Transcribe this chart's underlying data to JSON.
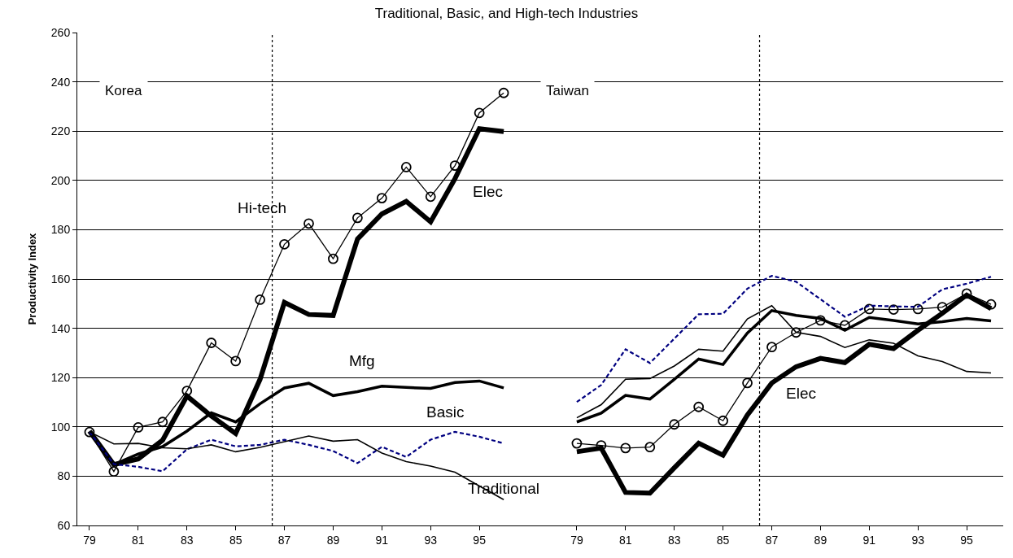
{
  "chart_data": [
    {
      "type": "line",
      "title": "Traditional, Basic, and High-tech Industries",
      "ylabel": "Productivity Index",
      "x": [
        79,
        80,
        81,
        82,
        83,
        84,
        85,
        86,
        87,
        88,
        89,
        90,
        91,
        92,
        93,
        94,
        95,
        96
      ],
      "xlim": [
        78.5,
        96.5
      ],
      "ylim": [
        60,
        260
      ],
      "xticks": [
        79,
        81,
        83,
        85,
        87,
        89,
        91,
        93,
        95
      ],
      "yticks": [
        60,
        80,
        100,
        120,
        140,
        160,
        180,
        200,
        220,
        240,
        260
      ],
      "grid": "y",
      "series": [
        {
          "name": "Mfg",
          "color": "#000000",
          "marker": "none",
          "line_style": "solid",
          "values": [
            97.9,
            84.7,
            89,
            92,
            98.3,
            105.7,
            102,
            109.4,
            115.8,
            117.7,
            112.7,
            114.3,
            116.5,
            116,
            115.6,
            118,
            118.6,
            115.8
          ]
        },
        {
          "name": "Elec",
          "color": "#000000",
          "marker": "none",
          "line_style": "solid",
          "values": [
            98.3,
            84.7,
            87,
            94.6,
            112.5,
            104.4,
            97.3,
            119.3,
            150.5,
            145.6,
            145.2,
            176.2,
            186.4,
            191.5,
            183.2,
            200.7,
            221,
            219.8
          ]
        },
        {
          "name": "Hi-tech",
          "color": "#000000",
          "marker": "circle",
          "line_style": "solid",
          "values": [
            97.9,
            81.9,
            99.8,
            102,
            114.6,
            134.1,
            126.7,
            151.6,
            174.1,
            182.5,
            168.2,
            184.8,
            192.8,
            205.4,
            193.4,
            206,
            227.4,
            235.5
          ]
        },
        {
          "name": "Basic",
          "color": "#000080",
          "marker": "none",
          "line_style": "dashed",
          "values": [
            98,
            84.9,
            83.8,
            82,
            90.9,
            94.8,
            92.1,
            92.7,
            94.8,
            92.7,
            90.2,
            85.3,
            91.9,
            87.8,
            94.8,
            98,
            96,
            93.3
          ]
        },
        {
          "name": "Traditional",
          "color": "#000000",
          "marker": "none",
          "line_style": "solid",
          "values": [
            98,
            93.1,
            93.3,
            91.5,
            91.1,
            92.7,
            89.9,
            91.7,
            94,
            96.3,
            94.2,
            94.8,
            89.4,
            85.9,
            84.1,
            81.6,
            76,
            70.5
          ]
        }
      ],
      "ref_lines": [
        {
          "axis": "x",
          "value": 86.5,
          "line_style": "dotted"
        }
      ],
      "annotations": [
        "Korea"
      ]
    },
    {
      "type": "line",
      "tick_labels": "x",
      "x": [
        79,
        80,
        81,
        82,
        83,
        84,
        85,
        86,
        87,
        88,
        89,
        90,
        91,
        92,
        93,
        94,
        95,
        96
      ],
      "xlim": [
        76.5,
        96.5
      ],
      "ylim": [
        60,
        260
      ],
      "xticks": [
        79,
        81,
        83,
        85,
        87,
        89,
        91,
        93,
        95
      ],
      "yticks": [
        60,
        80,
        100,
        120,
        140,
        160,
        180,
        200,
        220,
        240,
        260
      ],
      "grid": "y",
      "series": [
        {
          "color": "#000000",
          "marker": "none",
          "line_style": "solid",
          "values": [
            102,
            105.6,
            112.8,
            111.3,
            119.3,
            127.5,
            125.3,
            138.1,
            147.2,
            145.2,
            144,
            139.2,
            144.4,
            143.2,
            141.8,
            142.7,
            144,
            143
          ]
        },
        {
          "name": "Elec",
          "color": "#000000",
          "marker": "none",
          "line_style": "solid",
          "values": [
            89.9,
            91.4,
            73.4,
            73.1,
            83.4,
            93.4,
            88.5,
            104.8,
            117.8,
            124.4,
            127.8,
            126.1,
            133.5,
            131.8,
            139.2,
            146.1,
            153.5,
            148
          ]
        },
        {
          "color": "#000000",
          "marker": "circle",
          "line_style": "solid",
          "values": [
            93.3,
            92.5,
            91.4,
            91.8,
            101,
            108.1,
            102.5,
            117.8,
            132.4,
            138.3,
            143.2,
            141.2,
            147.8,
            147.6,
            147.8,
            148.6,
            154.1,
            149.7
          ]
        },
        {
          "color": "#000080",
          "marker": "none",
          "line_style": "dashed",
          "values": [
            110.1,
            117,
            131.5,
            125.9,
            135.8,
            145.7,
            145.9,
            156.1,
            161.3,
            158.9,
            151.8,
            144.7,
            149.2,
            148.9,
            148.7,
            155.8,
            158.1,
            160.9
          ]
        },
        {
          "color": "#000000",
          "marker": "none",
          "line_style": "solid",
          "values": [
            103.7,
            109,
            119.3,
            119.6,
            124.7,
            131.5,
            130.7,
            143.8,
            149.2,
            138.4,
            136.7,
            132.2,
            135.3,
            133.9,
            128.8,
            126.5,
            122.5,
            121.9
          ]
        }
      ],
      "ref_lines": [
        {
          "axis": "x",
          "value": 86.5,
          "line_style": "dotted"
        }
      ],
      "annotations": [
        "Taiwan"
      ]
    }
  ]
}
